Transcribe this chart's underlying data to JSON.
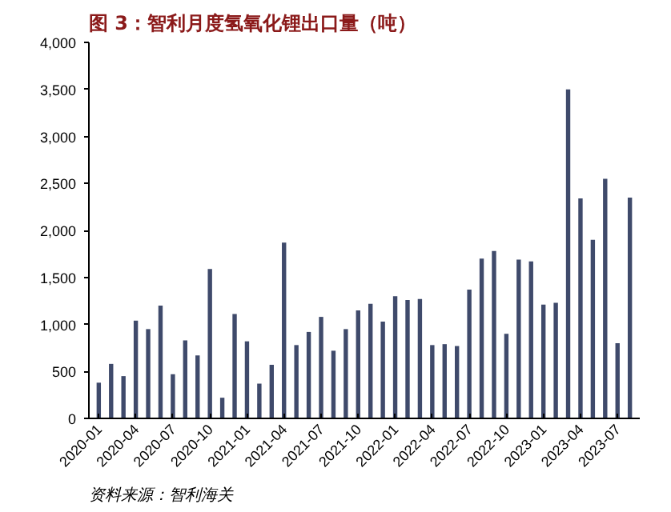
{
  "chart_data": {
    "type": "bar",
    "title": "图 3：智利月度氢氧化锂出口量（吨）",
    "categories": [
      "2020-01",
      null,
      null,
      "2020-04",
      null,
      null,
      "2020-07",
      null,
      null,
      "2020-10",
      null,
      null,
      "2021-01",
      null,
      null,
      "2021-04",
      null,
      null,
      "2021-07",
      null,
      null,
      "2021-10",
      null,
      null,
      "2022-01",
      null,
      null,
      "2022-04",
      null,
      null,
      "2022-07",
      null,
      null,
      "2022-10",
      null,
      null,
      "2023-01",
      null,
      null,
      "2023-04",
      null,
      null,
      "2023-07",
      null
    ],
    "values": [
      380,
      580,
      450,
      1040,
      950,
      1200,
      470,
      830,
      670,
      1590,
      220,
      1110,
      820,
      370,
      570,
      1870,
      780,
      920,
      1080,
      720,
      950,
      1150,
      1220,
      1030,
      1300,
      1260,
      1270,
      780,
      790,
      770,
      1370,
      1700,
      1780,
      900,
      1690,
      1670,
      1210,
      1230,
      3500,
      2340,
      1900,
      2550,
      800,
      2350
    ],
    "color": "#3f4a6b",
    "ylim": [
      0,
      4000
    ],
    "yticks": [
      {
        "value": 0,
        "label": "0"
      },
      {
        "value": 500,
        "label": "500"
      },
      {
        "value": 1000,
        "label": "1,000"
      },
      {
        "value": 1500,
        "label": "1,500"
      },
      {
        "value": 2000,
        "label": "2,000"
      },
      {
        "value": 2500,
        "label": "2,500"
      },
      {
        "value": 3000,
        "label": "3,000"
      },
      {
        "value": 3500,
        "label": "3,500"
      },
      {
        "value": 4000,
        "label": "4,000"
      }
    ],
    "grid": false,
    "annotations": [
      "资料来源：智利海关"
    ]
  }
}
